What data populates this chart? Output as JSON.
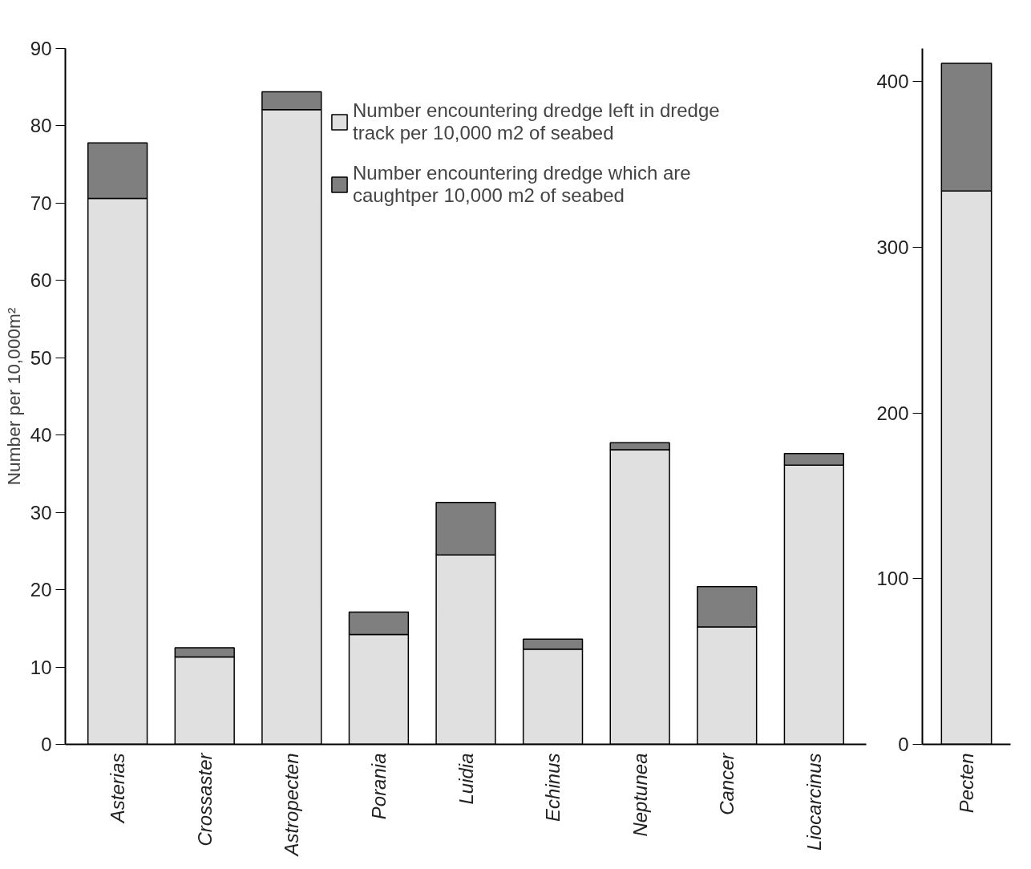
{
  "chart_data": [
    {
      "type": "bar",
      "stacked": true,
      "ylabel": "Number per 10,000m²",
      "categories": [
        "Asterias",
        "Crossaster",
        "Astropecten",
        "Porania",
        "Luidia",
        "Echinus",
        "Neptunea",
        "Cancer",
        "Liocarcinus"
      ],
      "series": [
        {
          "name": "Number encountering dredge left in dredge track per 10,000 m2 of seabed",
          "color": "#e0e0e0",
          "values": [
            70.6,
            11.3,
            82.1,
            14.2,
            24.5,
            12.3,
            38.1,
            15.2,
            36.1
          ]
        },
        {
          "name": "Number encountering dredge which are caughtper 10,000 m2 of seabed",
          "color": "#7f7f7f",
          "values": [
            7.2,
            1.2,
            2.3,
            2.9,
            6.8,
            1.3,
            0.9,
            5.2,
            1.5
          ]
        }
      ],
      "ylim": [
        0,
        90
      ],
      "yticks": [
        0,
        10,
        20,
        30,
        40,
        50,
        60,
        70,
        80,
        90
      ],
      "grid": false,
      "legend": "top right"
    },
    {
      "type": "bar",
      "stacked": true,
      "categories": [
        "Pecten"
      ],
      "series": [
        {
          "color": "#e0e0e0",
          "values": [
            334
          ]
        },
        {
          "color": "#7f7f7f",
          "values": [
            77
          ]
        }
      ],
      "ylim": [
        0,
        420
      ],
      "yticks": [
        0,
        100,
        200,
        300,
        400
      ],
      "grid": false
    }
  ]
}
